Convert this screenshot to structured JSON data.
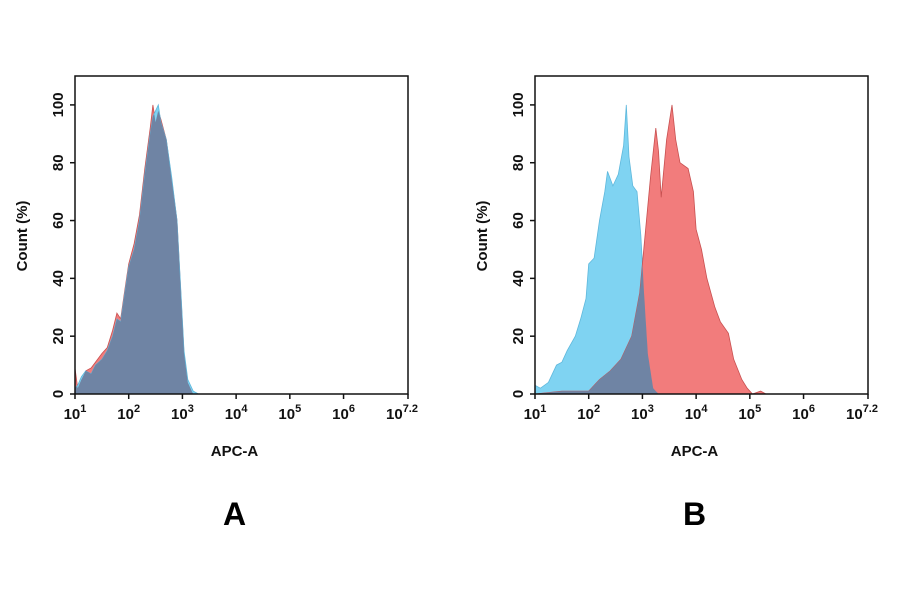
{
  "chart_data": [
    {
      "type": "area",
      "panel_label": "A",
      "xlabel": "APC-A",
      "ylabel": "Count  (%)",
      "x_scale": "log10",
      "xlim_log10": [
        1,
        7.2
      ],
      "ylim": [
        0,
        110
      ],
      "x_ticks": [
        {
          "base": "10",
          "exp": "1",
          "v": 1
        },
        {
          "base": "10",
          "exp": "2",
          "v": 2
        },
        {
          "base": "10",
          "exp": "3",
          "v": 3
        },
        {
          "base": "10",
          "exp": "4",
          "v": 4
        },
        {
          "base": "10",
          "exp": "5",
          "v": 5
        },
        {
          "base": "10",
          "exp": "6",
          "v": 6
        },
        {
          "base": "10",
          "exp": "7.2",
          "v": 7.2
        }
      ],
      "y_ticks": [
        "0",
        "20",
        "40",
        "60",
        "80",
        "100"
      ],
      "grid": false,
      "legend": "none",
      "overlap_color": "#6f84a4",
      "series": [
        {
          "color": "#f27c7c",
          "x_log10": [
            1.0,
            1.05,
            1.12,
            1.2,
            1.3,
            1.38,
            1.5,
            1.6,
            1.7,
            1.78,
            1.85,
            1.92,
            2.0,
            2.1,
            2.2,
            2.3,
            2.4,
            2.45,
            2.5,
            2.55,
            2.6,
            2.7,
            2.8,
            2.9,
            2.97,
            3.03,
            3.1,
            3.2
          ],
          "y": [
            9,
            2,
            5,
            8,
            9,
            11,
            14,
            16,
            22,
            28,
            26,
            35,
            45,
            52,
            62,
            78,
            92,
            100,
            94,
            98,
            95,
            88,
            74,
            60,
            35,
            14,
            4,
            0
          ]
        },
        {
          "color": "#7fd3f2",
          "x_log10": [
            1.0,
            1.05,
            1.12,
            1.2,
            1.3,
            1.38,
            1.5,
            1.6,
            1.7,
            1.78,
            1.85,
            1.92,
            2.0,
            2.1,
            2.2,
            2.3,
            2.4,
            2.45,
            2.5,
            2.55,
            2.6,
            2.7,
            2.8,
            2.9,
            2.97,
            3.03,
            3.1,
            3.2,
            3.3
          ],
          "y": [
            2,
            3,
            6,
            8,
            7,
            10,
            12,
            15,
            20,
            26,
            25,
            34,
            44,
            50,
            60,
            76,
            90,
            96,
            98,
            100,
            94,
            88,
            75,
            60,
            36,
            15,
            5,
            1,
            0
          ]
        }
      ]
    },
    {
      "type": "area",
      "panel_label": "B",
      "xlabel": "APC-A",
      "ylabel": "Count  (%)",
      "x_scale": "log10",
      "xlim_log10": [
        1,
        7.2
      ],
      "ylim": [
        0,
        110
      ],
      "x_ticks": [
        {
          "base": "10",
          "exp": "1",
          "v": 1
        },
        {
          "base": "10",
          "exp": "2",
          "v": 2
        },
        {
          "base": "10",
          "exp": "3",
          "v": 3
        },
        {
          "base": "10",
          "exp": "4",
          "v": 4
        },
        {
          "base": "10",
          "exp": "5",
          "v": 5
        },
        {
          "base": "10",
          "exp": "6",
          "v": 6
        },
        {
          "base": "10",
          "exp": "7.2",
          "v": 7.2
        }
      ],
      "y_ticks": [
        "0",
        "20",
        "40",
        "60",
        "80",
        "100"
      ],
      "grid": false,
      "legend": "none",
      "overlap_color": "#6f84a4",
      "series": [
        {
          "color": "#7fd3f2",
          "x_log10": [
            1.0,
            1.1,
            1.25,
            1.4,
            1.5,
            1.6,
            1.75,
            1.85,
            1.95,
            2.0,
            2.1,
            2.2,
            2.3,
            2.35,
            2.45,
            2.55,
            2.65,
            2.7,
            2.75,
            2.82,
            2.9,
            2.97,
            3.03,
            3.1,
            3.2,
            3.3
          ],
          "y": [
            3,
            2,
            4,
            10,
            11,
            15,
            20,
            26,
            33,
            45,
            47,
            60,
            70,
            77,
            72,
            76,
            86,
            100,
            82,
            72,
            70,
            55,
            35,
            14,
            2,
            0
          ]
        },
        {
          "color": "#f27c7c",
          "x_log10": [
            1.0,
            1.5,
            2.0,
            2.2,
            2.4,
            2.6,
            2.8,
            2.95,
            3.05,
            3.15,
            3.25,
            3.3,
            3.35,
            3.45,
            3.55,
            3.62,
            3.7,
            3.85,
            3.95,
            4.0,
            4.1,
            4.2,
            4.35,
            4.45,
            4.6,
            4.7,
            4.85,
            4.95,
            5.05,
            5.2,
            5.3
          ],
          "y": [
            0,
            1,
            1,
            5,
            8,
            12,
            20,
            35,
            55,
            75,
            92,
            84,
            68,
            88,
            100,
            88,
            80,
            78,
            70,
            57,
            50,
            40,
            30,
            25,
            21,
            12,
            5,
            2,
            0,
            1,
            0
          ]
        }
      ]
    }
  ]
}
